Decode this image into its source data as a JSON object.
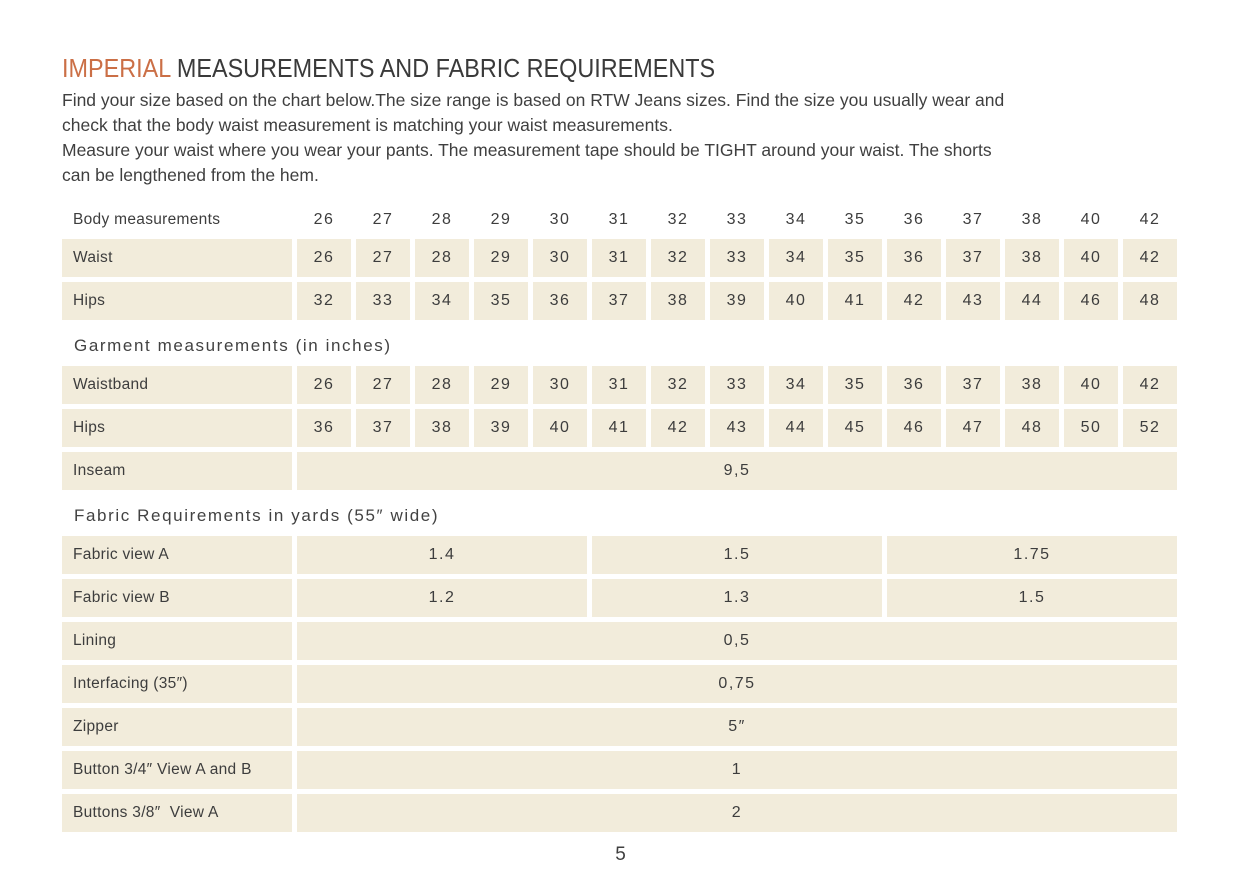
{
  "page": {
    "title_highlight": "IMPERIAL",
    "title_rest": " MEASUREMENTS AND FABRIC REQUIREMENTS",
    "accent_color": "#cb6f46",
    "cell_bg_color": "#f2ecdb",
    "page_number": "5"
  },
  "intro": {
    "lines": [
      "Find your size based on the chart below.The size range is based on RTW Jeans sizes. Find the size you usually wear and",
      "check that the body waist measurement is matching your waist measurements.",
      "Measure your waist where you wear your pants. The measurement tape should be TIGHT around your waist. The shorts",
      "can be lengthened from the hem."
    ]
  },
  "body_table": {
    "header_label": "Body measurements",
    "sizes": [
      "26",
      "27",
      "28",
      "29",
      "30",
      "31",
      "32",
      "33",
      "34",
      "35",
      "36",
      "37",
      "38",
      "40",
      "42"
    ],
    "rows": [
      {
        "label": "Waist",
        "values": [
          "26",
          "27",
          "28",
          "29",
          "30",
          "31",
          "32",
          "33",
          "34",
          "35",
          "36",
          "37",
          "38",
          "40",
          "42"
        ]
      },
      {
        "label": "Hips",
        "values": [
          "32",
          "33",
          "34",
          "35",
          "36",
          "37",
          "38",
          "39",
          "40",
          "41",
          "42",
          "43",
          "44",
          "46",
          "48"
        ]
      }
    ]
  },
  "garment_table": {
    "heading": "Garment measurements (in inches)",
    "rows": [
      {
        "label": "Waistband",
        "values": [
          "26",
          "27",
          "28",
          "29",
          "30",
          "31",
          "32",
          "33",
          "34",
          "35",
          "36",
          "37",
          "38",
          "40",
          "42"
        ]
      },
      {
        "label": "Hips",
        "values": [
          "36",
          "37",
          "38",
          "39",
          "40",
          "41",
          "42",
          "43",
          "44",
          "45",
          "46",
          "47",
          "48",
          "50",
          "52"
        ]
      }
    ],
    "span_rows": [
      {
        "label": "Inseam",
        "value": "9,5"
      }
    ]
  },
  "fabric_table": {
    "heading": "Fabric Requirements in yards (55″ wide)",
    "three_col_rows": [
      {
        "label": "Fabric view A",
        "values": [
          "1.4",
          "1.5",
          "1.75"
        ]
      },
      {
        "label": "Fabric view B",
        "values": [
          "1.2",
          "1.3",
          "1.5"
        ]
      }
    ],
    "span_rows": [
      {
        "label": "Lining",
        "value": "0,5"
      },
      {
        "label": "Interfacing (35″)",
        "value": "0,75"
      },
      {
        "label": "Zipper",
        "value": "5″"
      },
      {
        "label": "Button 3/4″ View A and B",
        "value": "1"
      },
      {
        "label": "Buttons 3/8″  View A",
        "value": "2"
      }
    ]
  }
}
